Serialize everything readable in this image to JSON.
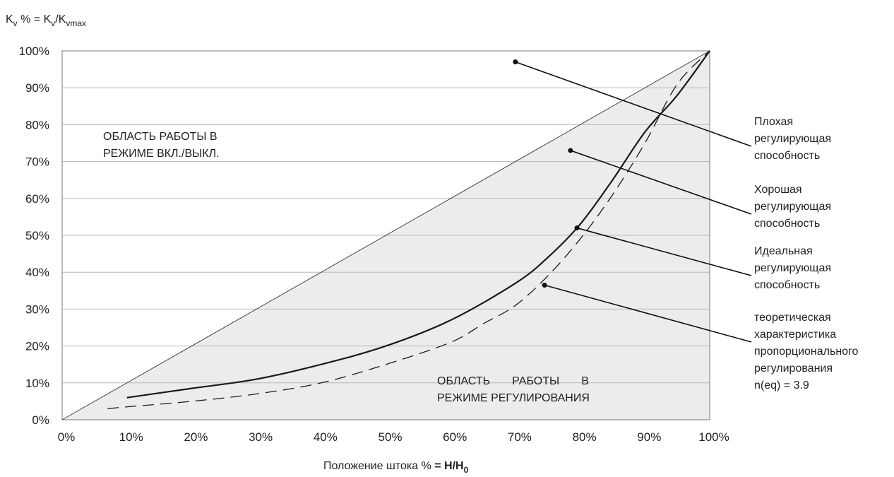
{
  "chart_data": {
    "type": "line",
    "ylabel": {
      "main": "K",
      "sub1": "v",
      "mid": " % = K",
      "sub2": "v",
      "slash": "/K",
      "sub3": "vmax"
    },
    "xlabel": {
      "text": "Положение штока % ",
      "bold_eq": "= H/H",
      "bold_sub": "0"
    },
    "xlim": [
      0,
      100
    ],
    "ylim": [
      0,
      100
    ],
    "x_ticks": [
      "0%",
      "10%",
      "20%",
      "30%",
      "40%",
      "50%",
      "60%",
      "70%",
      "80%",
      "90%",
      "100%"
    ],
    "y_ticks": [
      "0%",
      "10%",
      "20%",
      "30%",
      "40%",
      "50%",
      "60%",
      "70%",
      "80%",
      "90%",
      "100%"
    ],
    "grid": "horizontal",
    "regions": {
      "onoff": [
        "ОБЛАСТЬ РАБОТЫ В",
        "РЕЖИМЕ ВКЛ./ВЫКЛ."
      ],
      "regulating": [
        "ОБЛАСТЬ       РАБОТЫ       В",
        "РЕЖИМЕ РЕГУЛИРОВАНИЯ"
      ]
    },
    "series": [
      {
        "style": "thin",
        "x": [
          0,
          100
        ],
        "y": [
          0,
          100
        ]
      },
      {
        "style": "solid",
        "x": [
          10,
          20,
          30,
          40,
          50,
          60,
          70,
          75,
          80,
          85,
          90,
          95,
          100
        ],
        "y": [
          6,
          8.5,
          11,
          15,
          20,
          27,
          37,
          44,
          53,
          65,
          78,
          88,
          100
        ]
      },
      {
        "style": "dashed",
        "x": [
          7,
          10,
          20,
          30,
          40,
          50,
          60,
          65,
          70,
          75,
          80,
          85,
          90,
          95,
          100
        ],
        "y": [
          3,
          3.5,
          5,
          7,
          10,
          15,
          21,
          26,
          31,
          39,
          49,
          61,
          75,
          91,
          100
        ]
      }
    ],
    "annotations": [
      {
        "lines": [
          "Плохая",
          "регулирующая",
          "способность"
        ],
        "point": [
          70,
          97
        ]
      },
      {
        "lines": [
          "Хорошая",
          "регулирующая",
          "способность"
        ],
        "point": [
          78.5,
          73
        ]
      },
      {
        "lines": [
          "Идеальная",
          "регулирующая",
          "способность"
        ],
        "point": [
          79.5,
          52
        ]
      },
      {
        "lines": [
          "теоретическая",
          "характеристика",
          "пропорционального",
          "регулирования",
          "n(eq) = 3.9"
        ],
        "point": [
          74.5,
          36.5
        ]
      }
    ]
  }
}
